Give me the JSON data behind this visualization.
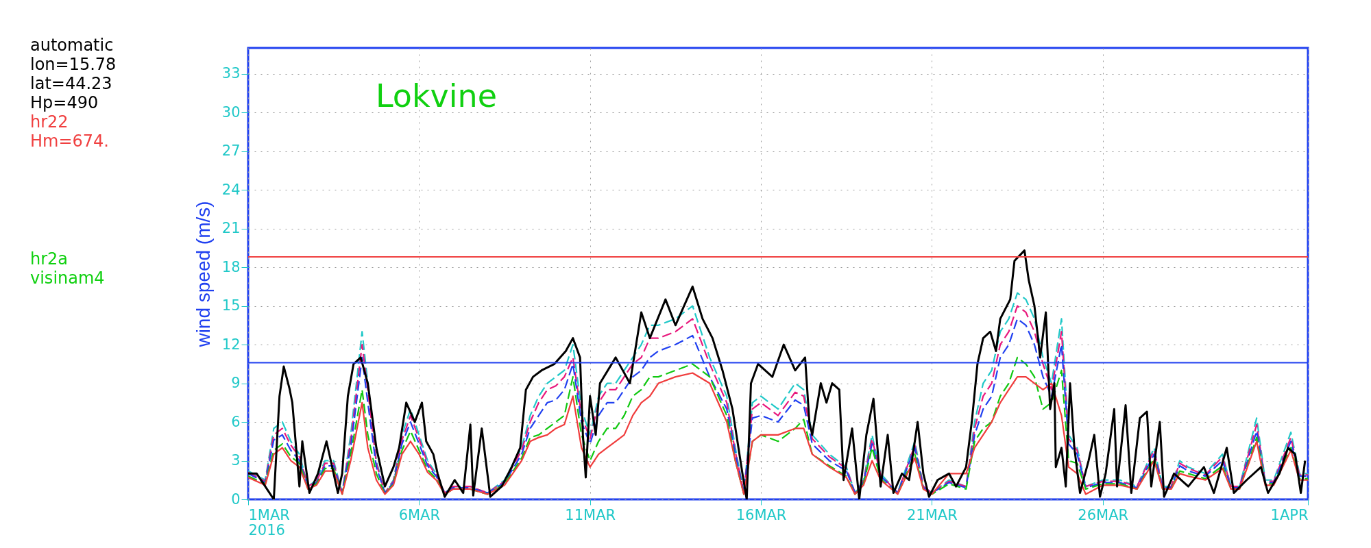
{
  "chart_data": {
    "type": "line",
    "title": "Lokvine",
    "ylabel": "wind speed  (m/s)",
    "annotations": [
      "automatic",
      "lon=15.78",
      "lat=44.23",
      "Hp=490",
      "hr22",
      "Hm=674.",
      "hr2a",
      "visinam4"
    ],
    "xlim": [
      "2016-03-01",
      "2016-04-01"
    ],
    "xticks": [
      {
        "value": "2016-03-01",
        "label": "1MAR\n2016"
      },
      {
        "value": "2016-03-06",
        "label": "6MAR"
      },
      {
        "value": "2016-03-11",
        "label": "11MAR"
      },
      {
        "value": "2016-03-16",
        "label": "16MAR"
      },
      {
        "value": "2016-03-21",
        "label": "21MAR"
      },
      {
        "value": "2016-03-26",
        "label": "26MAR"
      },
      {
        "value": "2016-04-01",
        "label": "1APR"
      }
    ],
    "ylim": [
      0,
      35
    ],
    "yticks": [
      0,
      3,
      6,
      9,
      12,
      15,
      18,
      21,
      24,
      27,
      30,
      33
    ],
    "grid": true,
    "marker": "none",
    "ref_lines": [
      {
        "axis": "y",
        "value": 18.8,
        "color": "#f04040"
      },
      {
        "axis": "y",
        "value": 10.6,
        "color": "#2040f0"
      }
    ],
    "x": [
      "2016-03-01T00:00",
      "2016-03-01T12:00",
      "2016-03-01T18:00",
      "2016-03-02T00:00",
      "2016-03-02T06:00",
      "2016-03-02T12:00",
      "2016-03-02T18:00",
      "2016-03-03T00:00",
      "2016-03-03T06:00",
      "2016-03-03T12:00",
      "2016-03-03T18:00",
      "2016-03-04T00:00",
      "2016-03-04T08:00",
      "2016-03-04T12:00",
      "2016-03-04T18:00",
      "2016-03-05T00:00",
      "2016-03-05T06:00",
      "2016-03-05T12:00",
      "2016-03-05T18:00",
      "2016-03-06T00:00",
      "2016-03-06T06:00",
      "2016-03-06T12:00",
      "2016-03-06T18:00",
      "2016-03-07T00:00",
      "2016-03-07T12:00",
      "2016-03-08T00:00",
      "2016-03-08T12:00",
      "2016-03-09T00:00",
      "2016-03-09T06:00",
      "2016-03-09T12:00",
      "2016-03-09T18:00",
      "2016-03-10T00:00",
      "2016-03-10T06:00",
      "2016-03-10T12:00",
      "2016-03-10T18:00",
      "2016-03-11T00:00",
      "2016-03-11T06:00",
      "2016-03-11T12:00",
      "2016-03-11T18:00",
      "2016-03-12T00:00",
      "2016-03-12T06:00",
      "2016-03-12T12:00",
      "2016-03-12T18:00",
      "2016-03-13T00:00",
      "2016-03-13T12:00",
      "2016-03-14T00:00",
      "2016-03-14T12:00",
      "2016-03-15T00:00",
      "2016-03-15T06:00",
      "2016-03-15T12:00",
      "2016-03-15T18:00",
      "2016-03-16T00:00",
      "2016-03-16T12:00",
      "2016-03-17T00:00",
      "2016-03-17T06:00",
      "2016-03-17T12:00",
      "2016-03-18T00:00",
      "2016-03-18T12:00",
      "2016-03-18T18:00",
      "2016-03-19T00:00",
      "2016-03-19T06:00",
      "2016-03-19T12:00",
      "2016-03-20T00:00",
      "2016-03-20T12:00",
      "2016-03-20T18:00",
      "2016-03-21T00:00",
      "2016-03-21T12:00",
      "2016-03-22T00:00",
      "2016-03-22T06:00",
      "2016-03-22T12:00",
      "2016-03-22T18:00",
      "2016-03-23T00:00",
      "2016-03-23T06:00",
      "2016-03-23T12:00",
      "2016-03-23T18:00",
      "2016-03-24T00:00",
      "2016-03-24T06:00",
      "2016-03-24T12:00",
      "2016-03-24T19:00",
      "2016-03-25T00:00",
      "2016-03-25T06:00",
      "2016-03-25T12:00",
      "2016-03-26T00:00",
      "2016-03-26T12:00",
      "2016-03-27T00:00",
      "2016-03-27T12:00",
      "2016-03-27T18:00",
      "2016-03-28T00:00",
      "2016-03-28T06:00",
      "2016-03-28T12:00",
      "2016-03-29T00:00",
      "2016-03-29T12:00",
      "2016-03-29T18:00",
      "2016-03-30T00:00",
      "2016-03-30T12:00",
      "2016-03-30T18:00",
      "2016-03-31T00:00",
      "2016-03-31T12:00",
      "2016-03-31T18:00",
      "2016-04-01T00:00"
    ],
    "series": [
      {
        "color": "#20c8c8",
        "line_style": "dashed",
        "values": [
          2.2,
          1.5,
          5.5,
          6,
          4.5,
          3.5,
          1,
          1.5,
          3,
          3,
          0.5,
          5,
          13,
          9,
          3,
          0.5,
          1.5,
          5,
          7,
          5,
          3,
          2,
          0.5,
          1,
          1,
          0.5,
          1.5,
          4,
          6.5,
          8,
          9,
          9.5,
          10,
          12,
          7,
          5,
          8,
          9,
          9,
          10,
          11,
          12,
          13.5,
          13.5,
          14,
          15,
          11,
          8,
          4,
          0.5,
          7.5,
          8,
          7,
          9,
          8.5,
          5,
          3.5,
          2.5,
          0.5,
          1.5,
          5,
          2,
          0.5,
          4.5,
          1,
          0.5,
          1.5,
          1,
          6,
          9,
          10,
          13,
          14,
          16,
          15.5,
          14,
          11,
          9,
          14,
          5,
          4,
          1,
          1.5,
          1.5,
          1,
          4,
          1,
          1,
          3,
          2.5,
          2,
          3.5,
          1,
          1,
          6.3,
          1.5,
          1.5,
          5.2,
          2,
          2
        ]
      },
      {
        "color": "#e8187c",
        "line_style": "dashed",
        "values": [
          2.1,
          1.4,
          5,
          5.5,
          4.2,
          3.3,
          1,
          1.4,
          2.8,
          2.8,
          0.5,
          4.5,
          12,
          8.5,
          2.8,
          0.5,
          1.4,
          4.6,
          6.5,
          4.7,
          2.8,
          1.9,
          0.5,
          1,
          1,
          0.5,
          1.4,
          3.8,
          6,
          7.5,
          8.5,
          8.8,
          9.5,
          11,
          6.5,
          4.7,
          7.5,
          8.5,
          8.5,
          9.5,
          10.5,
          11,
          12.5,
          12.5,
          13,
          14,
          10.5,
          7.5,
          3.7,
          0.5,
          7,
          7.5,
          6.5,
          8.3,
          8,
          4.7,
          3.3,
          2.4,
          0.5,
          1.4,
          4.7,
          1.9,
          0.5,
          4.2,
          1,
          0.5,
          1.4,
          1,
          5.5,
          8,
          9,
          12,
          13,
          15,
          14.5,
          13,
          10.5,
          8.5,
          13,
          4.7,
          3.8,
          1,
          1.4,
          1.4,
          1,
          3.8,
          1,
          1,
          2.8,
          2.4,
          1.9,
          3.3,
          1,
          1,
          5.8,
          1.4,
          1.4,
          4.8,
          1.9,
          1.9
        ]
      },
      {
        "color": "#2040f0",
        "line_style": "dashed",
        "values": [
          2,
          1.3,
          4.6,
          5,
          3.8,
          3,
          0.9,
          1.3,
          2.6,
          2.6,
          0.5,
          4,
          11,
          7.5,
          2.5,
          0.5,
          1.3,
          4.3,
          6,
          4.3,
          2.6,
          1.8,
          0.5,
          0.9,
          0.9,
          0.5,
          1.3,
          3.5,
          5.5,
          6.5,
          7.5,
          7.7,
          8.5,
          10.5,
          6,
          4.3,
          6.5,
          7.5,
          7.5,
          8.5,
          9.5,
          10,
          11,
          11.5,
          12,
          12.7,
          9.5,
          7,
          3.5,
          0.5,
          6.3,
          6.5,
          6,
          7.7,
          7.3,
          4.3,
          3,
          2.2,
          0.5,
          1.3,
          4.3,
          1.8,
          0.5,
          4,
          0.9,
          0.5,
          1.3,
          0.9,
          5,
          7,
          8,
          11,
          12,
          14,
          13.5,
          12,
          9.5,
          8,
          12,
          4.3,
          3.5,
          0.9,
          1.3,
          1.3,
          0.9,
          3.5,
          0.9,
          0.9,
          2.6,
          2.2,
          1.8,
          3,
          0.9,
          0.9,
          5.3,
          1.3,
          1.3,
          4.5,
          1.8,
          1.8
        ]
      },
      {
        "color": "#10c810",
        "line_style": "dashed",
        "values": [
          1.8,
          1.2,
          3.8,
          4.3,
          3.3,
          2.8,
          0.8,
          1.2,
          2.4,
          2.4,
          0.4,
          3.5,
          8.5,
          5,
          2,
          0.4,
          1.2,
          3.8,
          5.3,
          3.8,
          2.3,
          1.6,
          0.4,
          0.8,
          0.8,
          0.4,
          1.2,
          3.2,
          4.8,
          5,
          5.5,
          6,
          6.5,
          9.5,
          5,
          3,
          4.5,
          5.5,
          5.5,
          6.5,
          8,
          8.5,
          9.5,
          9.5,
          10,
          10.5,
          9.5,
          6.5,
          3,
          0.4,
          4.5,
          5,
          4.5,
          5.5,
          6.2,
          3.5,
          2.6,
          1.8,
          0.4,
          1.2,
          4,
          1.6,
          0.4,
          3.5,
          0.8,
          0.4,
          1.2,
          0.8,
          4.5,
          5.5,
          6,
          8,
          9,
          11,
          10.5,
          9.5,
          7,
          7.5,
          10,
          3,
          2.8,
          0.8,
          1.2,
          1.2,
          0.8,
          3.2,
          0.8,
          0.8,
          2.2,
          2,
          1.6,
          2.6,
          0.8,
          0.8,
          4.8,
          1.2,
          1.2,
          4,
          1.6,
          1.6
        ]
      },
      {
        "color": "#f03c3c",
        "line_style": "solid",
        "values": [
          1.7,
          1.1,
          3.5,
          4,
          3,
          2.5,
          0.8,
          1.1,
          2.2,
          2.2,
          0.4,
          3,
          7.5,
          4,
          1.5,
          0.4,
          1.1,
          3.5,
          4.5,
          3.5,
          2.1,
          1.5,
          0.4,
          0.8,
          0.8,
          0.4,
          1.1,
          3,
          4.5,
          4.8,
          5,
          5.5,
          5.8,
          8,
          4,
          2.5,
          3.5,
          4,
          4.5,
          5,
          6.5,
          7.5,
          8,
          9,
          9.5,
          9.8,
          9,
          6,
          3,
          0.4,
          4.5,
          5,
          5,
          5.5,
          5.5,
          3.5,
          2.5,
          1.7,
          0.4,
          1.1,
          3,
          1.5,
          0.4,
          3.2,
          0.8,
          0.4,
          2,
          2,
          4,
          5,
          6,
          7.5,
          8.5,
          9.5,
          9.5,
          9,
          8.5,
          9,
          6.5,
          2.5,
          2,
          0.4,
          1.1,
          1.1,
          0.8,
          3,
          0.8,
          0.8,
          2,
          1.8,
          1.5,
          2.4,
          0.8,
          0.8,
          4.5,
          1.1,
          1.1,
          3.8,
          1.5,
          1.5
        ]
      },
      {
        "color": "#000000",
        "line_style": "solid",
        "x": [
          "2016-03-01T00:00",
          "2016-03-01T06:00",
          "2016-03-01T12:00",
          "2016-03-01T18:00",
          "2016-03-01T22:00",
          "2016-03-02T01:00",
          "2016-03-02T05:00",
          "2016-03-02T07:00",
          "2016-03-02T12:00",
          "2016-03-02T14:00",
          "2016-03-02T19:00",
          "2016-03-03T01:00",
          "2016-03-03T07:00",
          "2016-03-03T15:00",
          "2016-03-03T18:00",
          "2016-03-03T22:00",
          "2016-03-04T02:00",
          "2016-03-04T07:00",
          "2016-03-04T12:00",
          "2016-03-04T18:00",
          "2016-03-05T00:00",
          "2016-03-05T06:00",
          "2016-03-05T10:00",
          "2016-03-05T15:00",
          "2016-03-05T21:00",
          "2016-03-06T02:00",
          "2016-03-06T05:00",
          "2016-03-06T10:00",
          "2016-03-06T13:00",
          "2016-03-06T18:00",
          "2016-03-07T01:00",
          "2016-03-07T07:00",
          "2016-03-07T12:00",
          "2016-03-07T14:00",
          "2016-03-07T20:00",
          "2016-03-08T02:00",
          "2016-03-08T10:00",
          "2016-03-08T17:00",
          "2016-03-08T23:00",
          "2016-03-09T03:00",
          "2016-03-09T08:00",
          "2016-03-09T14:00",
          "2016-03-09T23:00",
          "2016-03-10T07:00",
          "2016-03-10T12:00",
          "2016-03-10T17:00",
          "2016-03-10T19:00",
          "2016-03-10T21:00",
          "2016-03-11T00:00",
          "2016-03-11T04:00",
          "2016-03-11T07:00",
          "2016-03-11T18:00",
          "2016-03-12T04:00",
          "2016-03-12T12:00",
          "2016-03-12T18:00",
          "2016-03-13T05:00",
          "2016-03-13T12:00",
          "2016-03-13T18:00",
          "2016-03-14T00:00",
          "2016-03-14T07:00",
          "2016-03-14T14:00",
          "2016-03-14T21:00",
          "2016-03-15T04:00",
          "2016-03-15T11:00",
          "2016-03-15T14:00",
          "2016-03-15T17:00",
          "2016-03-15T22:00",
          "2016-03-16T08:00",
          "2016-03-16T16:00",
          "2016-03-17T00:00",
          "2016-03-17T07:00",
          "2016-03-17T10:00",
          "2016-03-17T12:00",
          "2016-03-17T18:00",
          "2016-03-17T22:00",
          "2016-03-18T02:00",
          "2016-03-18T07:00",
          "2016-03-18T10:00",
          "2016-03-18T16:00",
          "2016-03-18T21:00",
          "2016-03-19T02:00",
          "2016-03-19T07:00",
          "2016-03-19T12:00",
          "2016-03-19T17:00",
          "2016-03-19T21:00",
          "2016-03-20T03:00",
          "2016-03-20T08:00",
          "2016-03-20T14:00",
          "2016-03-20T18:00",
          "2016-03-20T22:00",
          "2016-03-21T04:00",
          "2016-03-21T12:00",
          "2016-03-21T17:00",
          "2016-03-22T00:00",
          "2016-03-22T04:00",
          "2016-03-22T08:00",
          "2016-03-22T12:00",
          "2016-03-22T17:00",
          "2016-03-22T21:00",
          "2016-03-23T00:00",
          "2016-03-23T07:00",
          "2016-03-23T10:00",
          "2016-03-23T17:00",
          "2016-03-23T20:00",
          "2016-03-24T00:00",
          "2016-03-24T04:00",
          "2016-03-24T08:00",
          "2016-03-24T11:00",
          "2016-03-24T14:00",
          "2016-03-24T15:00",
          "2016-03-24T19:00",
          "2016-03-24T22:00",
          "2016-03-25T01:00",
          "2016-03-25T04:00",
          "2016-03-25T08:00",
          "2016-03-25T14:00",
          "2016-03-25T18:00",
          "2016-03-25T22:00",
          "2016-03-26T02:00",
          "2016-03-26T08:00",
          "2016-03-26T10:00",
          "2016-03-26T16:00",
          "2016-03-26T20:00",
          "2016-03-27T02:00",
          "2016-03-27T07:00",
          "2016-03-27T10:00",
          "2016-03-27T16:00",
          "2016-03-27T19:00",
          "2016-03-28T02:00",
          "2016-03-28T12:00",
          "2016-03-28T23:00",
          "2016-03-29T06:00",
          "2016-03-29T15:00",
          "2016-03-29T20:00",
          "2016-03-30T05:00",
          "2016-03-30T15:00",
          "2016-03-30T20:00",
          "2016-03-31T04:00",
          "2016-03-31T10:00",
          "2016-03-31T15:00",
          "2016-03-31T19:00",
          "2016-03-31T22:00"
        ],
        "values": [
          2,
          2,
          1,
          0,
          8,
          10.3,
          8.6,
          7.5,
          1,
          4.5,
          0.5,
          2,
          4.5,
          0.5,
          2,
          8,
          10.5,
          11,
          9,
          4,
          1,
          2.5,
          4,
          7.5,
          6,
          7.5,
          4.5,
          3.5,
          2,
          0.2,
          1.5,
          0.5,
          5.8,
          0.3,
          5.5,
          0.2,
          1,
          2.5,
          4,
          8.5,
          9.5,
          10,
          10.5,
          11.5,
          12.5,
          11,
          5,
          1.7,
          8,
          5,
          9,
          11,
          9,
          14.5,
          12.5,
          15.5,
          13.5,
          15,
          16.5,
          14,
          12.5,
          10,
          7,
          2,
          0,
          9,
          10.5,
          9.5,
          12,
          10,
          11,
          6,
          5,
          9,
          7.5,
          9,
          8.5,
          1.5,
          5.5,
          0,
          5,
          7.8,
          1,
          5,
          0.5,
          2,
          1.5,
          6,
          2,
          0.2,
          1.5,
          2,
          1,
          2.5,
          6,
          10.5,
          12.5,
          13,
          11.5,
          14,
          15.5,
          18.5,
          19.3,
          17,
          15,
          11,
          14.5,
          7,
          9,
          2.5,
          4,
          1,
          9,
          4,
          0.5,
          3,
          5,
          0.2,
          2,
          7,
          1,
          7.3,
          0.5,
          6.3,
          6.8,
          1,
          6,
          0.2,
          2,
          1,
          2.5,
          0.5,
          4,
          0.5,
          1.5,
          2.5,
          0.5,
          2,
          4,
          3.5,
          0.5,
          3
        ]
      }
    ]
  }
}
